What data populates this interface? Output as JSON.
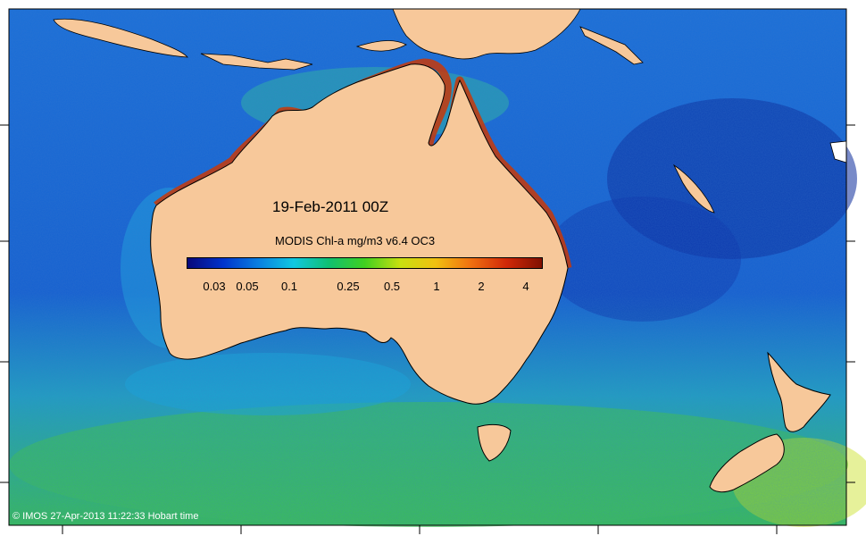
{
  "map": {
    "date_label": "19-Feb-2011 00Z",
    "colorbar": {
      "title": "MODIS Chl-a mg/m3 v6.4 OC3",
      "ticks": [
        "0.03",
        "0.05",
        "0.1",
        "0.25",
        "0.5",
        "1",
        "2",
        "4"
      ],
      "colors": [
        "#08087a",
        "#0033cc",
        "#0a7fe0",
        "#10c8e0",
        "#10c070",
        "#40d020",
        "#c8e010",
        "#f0c010",
        "#f07010",
        "#d02808",
        "#801000"
      ]
    },
    "credit": "© IMOS 27-Apr-2013 11:22:33 Hobart time",
    "colors": {
      "land": "#f7c89a",
      "ocean_low": "#1040c8",
      "ocean_mid": "#1c8ce0",
      "ocean_high": "#30c060",
      "coastal_high": "#d04010"
    }
  }
}
